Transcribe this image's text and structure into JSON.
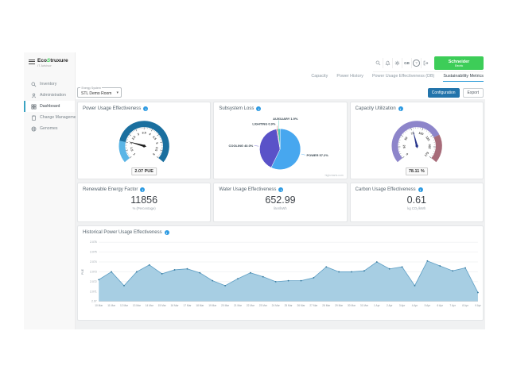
{
  "sidebar": {
    "logo": {
      "prefix": "Eco",
      "accent": "S",
      "suffix": "truxure",
      "subtitle": "IT Advisor"
    },
    "items": [
      {
        "label": "Inventory"
      },
      {
        "label": "Administration"
      },
      {
        "label": "Dashboard",
        "active": true
      },
      {
        "label": "Change Management"
      },
      {
        "label": "Genomes"
      }
    ]
  },
  "header": {
    "language": "GB",
    "brand_line1": "Schneider",
    "brand_line2": "Electric",
    "icons": [
      "search-icon",
      "notifications-icon",
      "settings-icon",
      "language-label",
      "help-icon",
      "logout-icon"
    ]
  },
  "tabs": [
    {
      "label": "Capacity"
    },
    {
      "label": "Power History"
    },
    {
      "label": "Power Usage Effectiveness (DB)"
    },
    {
      "label": "Sustainability Metrics",
      "active": true
    }
  ],
  "controls": {
    "energy_system_label": "Energy System",
    "energy_system_value": "STL Demo Room",
    "configuration_label": "Configuration",
    "export_label": "Export"
  },
  "cards": {
    "pue_gauge": {
      "title": "Power Usage Effectiveness",
      "value_label": "2.07 PUE"
    },
    "subsystem_loss": {
      "title": "Subsystem Loss",
      "watermark": "highcharts.com"
    },
    "capacity_gauge": {
      "title": "Capacity Utilization",
      "value_label": "78.11 %"
    },
    "renewable": {
      "title": "Renewable Energy Factor",
      "value": "11856",
      "unit": "% (Percentage)"
    },
    "water": {
      "title": "Water Usage Effectiveness",
      "value": "652.99",
      "unit": "liter/kWh"
    },
    "carbon": {
      "title": "Carbon Usage Effectiveness",
      "value": "0.61",
      "unit": "kg CO₂/kWh"
    },
    "historical": {
      "title": "Historical Power Usage Effectiveness"
    }
  },
  "colors": {
    "brand_green": "#3dcd58",
    "accent_blue": "#2f9cd8",
    "primary_button": "#2374ab"
  },
  "chart_data": [
    {
      "key": "pue_gauge",
      "type": "gauge",
      "title": "Power Usage Effectiveness",
      "min": 1,
      "max": 6,
      "value": 2.07,
      "value_label": "2.07 PUE",
      "tick_step": 0.5,
      "minor_tick_step": 0.1,
      "tick_labels": [
        "1",
        "1.5",
        "2",
        "2.5",
        "3",
        "3.5",
        "4",
        "4.5",
        "5",
        "5.5",
        "6"
      ],
      "bands": [
        {
          "from": 1,
          "to": 2,
          "color": "#5ab5e6"
        },
        {
          "from": 2,
          "to": 6,
          "color": "#1a6f9f"
        }
      ],
      "needle_color": "#1b1b1b"
    },
    {
      "key": "subsystem_loss",
      "type": "pie",
      "title": "Subsystem Loss",
      "slices": [
        {
          "label": "POWER",
          "value": 57.2,
          "color": "#47a7ef"
        },
        {
          "label": "COOLING",
          "value": 40.0,
          "color": "#5a52c8"
        },
        {
          "label": "LIGHTING",
          "value": 0.9,
          "color": "#e4645e"
        },
        {
          "label": "AUXILIARY",
          "value": 1.9,
          "color": "#3ec2ad"
        }
      ]
    },
    {
      "key": "capacity_gauge",
      "type": "gauge",
      "title": "Capacity Utilization",
      "min": 0,
      "max": 175,
      "value": 78.11,
      "value_label": "78.11 %",
      "tick_step": 25,
      "minor_tick_step": 5,
      "tick_labels": [
        "0",
        "25",
        "50",
        "75",
        "100",
        "125",
        "150",
        "175"
      ],
      "bands": [
        {
          "from": 0,
          "to": 130,
          "color": "#8d85ca"
        },
        {
          "from": 130,
          "to": 175,
          "color": "#a76b79"
        }
      ],
      "needle_color": "#27348b"
    },
    {
      "key": "historical_pue",
      "type": "area",
      "title": "Historical Power Usage Effectiveness",
      "ylabel": "PUE",
      "ylim": [
        2.07,
        2.076
      ],
      "ytick_labels": [
        "2.07",
        "2.071",
        "2.072",
        "2.073",
        "2.074",
        "2.075",
        "2.076"
      ],
      "grid": true,
      "legend": "none",
      "categories": [
        "10 Mar",
        "11 Mar",
        "12 Mar",
        "13 Mar",
        "14 Mar",
        "15 Mar",
        "16 Mar",
        "17 Mar",
        "18 Mar",
        "19 Mar",
        "20 Mar",
        "21 Mar",
        "22 Mar",
        "23 Mar",
        "24 Mar",
        "25 Mar",
        "26 Mar",
        "27 Mar",
        "28 Mar",
        "29 Mar",
        "30 Mar",
        "31 Mar",
        "1 Apr",
        "2 Apr",
        "3 Apr",
        "4 Apr",
        "5 Apr",
        "6 Apr",
        "7 Apr",
        "8 Apr",
        "9 Apr"
      ],
      "values": [
        2.0722,
        2.073,
        2.0716,
        2.073,
        2.0737,
        2.0728,
        2.0732,
        2.0733,
        2.0729,
        2.0721,
        2.0716,
        2.0723,
        2.0729,
        2.0725,
        2.072,
        2.0721,
        2.0721,
        2.0724,
        2.0735,
        2.073,
        2.073,
        2.0731,
        2.074,
        2.0733,
        2.0735,
        2.0716,
        2.0741,
        2.0736,
        2.0731,
        2.0734,
        2.0709
      ],
      "line_color": "#5d9ec4",
      "fill_color": "#a7cee3",
      "marker_color": "#35789c"
    }
  ]
}
